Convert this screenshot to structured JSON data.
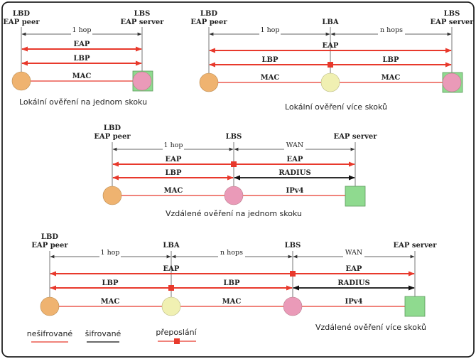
{
  "colors": {
    "red": "#e8392c",
    "black": "#111111",
    "peer": "#efb370",
    "lba": "#f0f0b2",
    "lbs": "#ea9ab8",
    "server": "#8fda8f",
    "server_border": "#5a9a5a",
    "frame": "#222222"
  },
  "d1": {
    "lbd": "LBD",
    "peer": "EAP peer",
    "lbs": "LBS",
    "server": "EAP server",
    "hop": "1 hop",
    "eap": "EAP",
    "lbp": "LBP",
    "mac": "MAC",
    "caption": "Lokální ověření na jednom skoku"
  },
  "d2": {
    "lbd": "LBD",
    "peer": "EAP peer",
    "lba": "LBA",
    "lbs": "LBS",
    "server": "EAP server",
    "hop1": "1 hop",
    "hops": "n hops",
    "eap": "EAP",
    "lbp1": "LBP",
    "lbp2": "LBP",
    "mac1": "MAC",
    "mac2": "MAC",
    "caption": "Lokální ověření více skoků"
  },
  "d3": {
    "lbd": "LBD",
    "peer": "EAP peer",
    "lbs": "LBS",
    "server": "EAP server",
    "hop": "1 hop",
    "wan": "WAN",
    "eap1": "EAP",
    "eap2": "EAP",
    "lbp": "LBP",
    "radius": "RADIUS",
    "mac": "MAC",
    "ipv4": "IPv4",
    "caption": "Vzdálené ověření na jednom skoku"
  },
  "d4": {
    "lbd": "LBD",
    "peer": "EAP peer",
    "lba": "LBA",
    "lbs": "LBS",
    "server": "EAP server",
    "hop1": "1 hop",
    "hops": "n hops",
    "wan": "WAN",
    "eap1": "EAP",
    "eap2": "EAP",
    "lbp1": "LBP",
    "lbp2": "LBP",
    "radius": "RADIUS",
    "mac1": "MAC",
    "mac2": "MAC",
    "ipv4": "IPv4",
    "caption": "Vzdálené ověření více skoků"
  },
  "legend": {
    "unencrypted": "nešifrované",
    "encrypted": "šifrované",
    "forwarding": "přeposlání"
  }
}
